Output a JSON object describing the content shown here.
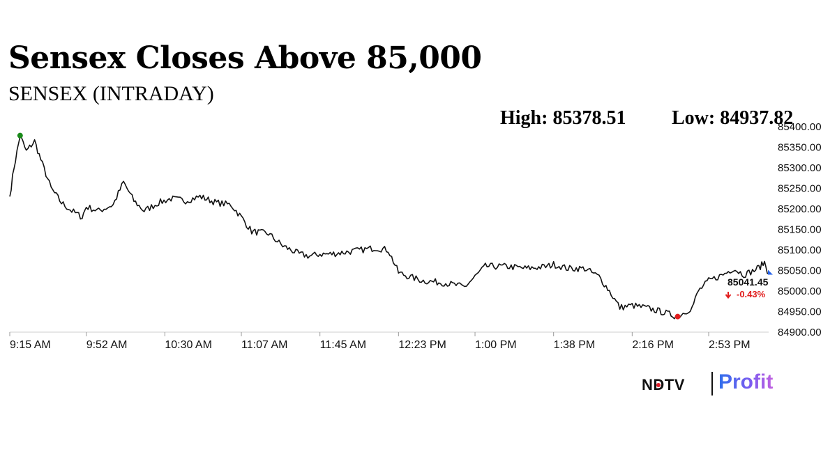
{
  "header": {
    "title": "Sensex Closes Above 85,000",
    "subtitle": "SENSEX (INTRADAY)",
    "high_text": "High: 85378.51",
    "low_text": "Low: 84937.82"
  },
  "brand": {
    "ndtv": "NDTV",
    "profit": "Profit"
  },
  "chart_data": {
    "type": "line",
    "title": "",
    "xlabel": "",
    "ylabel": "",
    "x_ticks": [
      "9:15 AM",
      "9:52 AM",
      "10:30 AM",
      "11:07 AM",
      "11:45 AM",
      "12:23 PM",
      "1:00 PM",
      "1:38 PM",
      "2:16 PM",
      "2:53 PM"
    ],
    "y_ticks": [
      "84900.00",
      "84950.00",
      "85000.00",
      "85050.00",
      "85100.00",
      "85150.00",
      "85200.00",
      "85250.00",
      "85300.00",
      "85350.00",
      "85400.00"
    ],
    "ylim": [
      84900,
      85400
    ],
    "grid": false,
    "series": [
      {
        "x": [
          "9:15 AM",
          "9:17 AM",
          "9:20 AM",
          "9:23 AM",
          "9:27 AM",
          "9:30 AM",
          "9:35 AM",
          "9:40 AM",
          "9:45 AM",
          "9:50 AM",
          "9:52 AM",
          "9:58 AM",
          "10:05 AM",
          "10:10 AM",
          "10:15 AM",
          "10:20 AM",
          "10:27 AM",
          "10:33 AM",
          "10:40 AM",
          "10:47 AM",
          "10:55 AM",
          "11:02 AM",
          "11:07 AM",
          "11:12 AM",
          "11:20 AM",
          "11:27 AM",
          "11:35 AM",
          "11:40 AM",
          "11:45 AM",
          "11:50 AM",
          "11:58 AM",
          "12:05 PM",
          "12:12 PM",
          "12:18 PM",
          "12:23 PM",
          "12:28 PM",
          "12:35 PM",
          "12:45 PM",
          "12:55 PM",
          "1:00 PM",
          "1:05 PM",
          "1:15 PM",
          "1:25 PM",
          "1:35 PM",
          "1:38 PM",
          "1:45 PM",
          "1:53 PM",
          "2:00 PM",
          "2:05 PM",
          "2:10 PM",
          "2:16 PM",
          "2:22 PM",
          "2:30 PM",
          "2:38 PM",
          "2:45 PM",
          "2:48 PM",
          "2:53 PM",
          "3:00 PM",
          "3:05 PM",
          "3:10 PM",
          "3:15 PM",
          "3:18 PM",
          "3:20 PM",
          "3:22 PM"
        ],
        "y": [
          85230,
          85300,
          85378.51,
          85340,
          85365,
          85320,
          85250,
          85215,
          85195,
          85180,
          85205,
          85195,
          85210,
          85265,
          85220,
          85195,
          85215,
          85225,
          85220,
          85230,
          85215,
          85210,
          85180,
          85145,
          85140,
          85110,
          85090,
          85085,
          85090,
          85090,
          85095,
          85100,
          85105,
          85100,
          85045,
          85035,
          85025,
          85020,
          85010,
          85035,
          85060,
          85060,
          85055,
          85060,
          85065,
          85055,
          85055,
          85035,
          85000,
          84960,
          84965,
          84960,
          84950,
          84937.82,
          84960,
          85000,
          85025,
          85040,
          85055,
          85040,
          85050,
          85060,
          85070,
          85041.45
        ]
      }
    ],
    "markers": [
      {
        "name": "high",
        "x": "9:20 AM",
        "y": 85378.51,
        "color": "#1a8a1a"
      },
      {
        "name": "low",
        "x": "2:38 PM",
        "y": 84937.82,
        "color": "#e11d1d"
      }
    ],
    "last_value": "85041.45",
    "change": "-0.43%",
    "change_color": "#e11d1d"
  }
}
